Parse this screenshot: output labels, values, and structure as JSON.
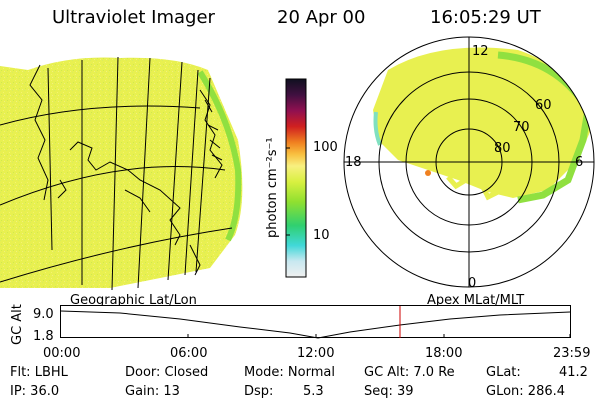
{
  "header": {
    "instrument": "Ultraviolet Imager",
    "date": "20 Apr 00",
    "time": "16:05:29 UT"
  },
  "colorbar": {
    "unit_label": "photon cm⁻²s⁻¹",
    "ticks": [
      "100",
      "10"
    ],
    "colors": [
      "#f0f0f0",
      "#c8e8f0",
      "#40d8d8",
      "#30d070",
      "#90e030",
      "#d8f040",
      "#f8f080",
      "#f8c040",
      "#f08020",
      "#d02020",
      "#901050",
      "#401040",
      "#101020"
    ]
  },
  "geographic_map": {
    "label": "Geographic Lat/Lon",
    "colors": {
      "disk": "#e8f050",
      "edge": "#90e040",
      "coast": "#000000",
      "grid": "#000000"
    }
  },
  "polar_plot": {
    "label": "Apex MLat/MLT",
    "mlt_labels": {
      "top": "12",
      "left": "18",
      "right": "6",
      "bottom": "0"
    },
    "lat_labels": [
      "60",
      "70",
      "80"
    ]
  },
  "altitude_plot": {
    "axis_title": "GC Alt",
    "ticks": [
      "9.0",
      "1.8"
    ],
    "time_ticks": [
      "00:00",
      "06:00",
      "12:00",
      "18:00",
      "23:59"
    ],
    "current_time_marker_color": "#cc0000"
  },
  "info": {
    "filter": "Flt: LBHL",
    "ip": "IP: 36.0",
    "door": "Door: Closed",
    "gain": "Gain: 13",
    "mode": "Mode: Normal",
    "dsp": "Dsp:",
    "dsp_value": "5.3",
    "gc_alt": "GC Alt: 7.0 Re",
    "seq": "Seq: 39",
    "glat": "GLat:",
    "glat_value": "41.2",
    "glon": "GLon: 286.4"
  }
}
